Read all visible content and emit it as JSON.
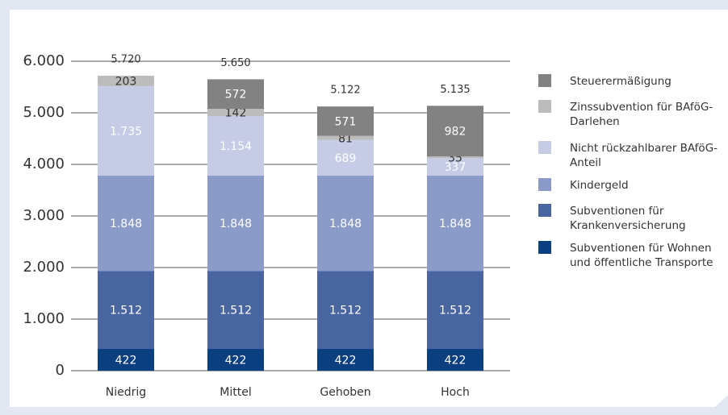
{
  "chart_data": {
    "type": "stacked-bar",
    "categories": [
      "Niedrig",
      "Mittel",
      "Gehoben",
      "Hoch"
    ],
    "series": [
      {
        "name": "Subventionen für Wohnen und öffentliche Transporte",
        "color": "#0b3f80",
        "label_color": "#ffffff",
        "values": [
          422,
          422,
          422,
          422
        ],
        "value_labels": [
          "422",
          "422",
          "422",
          "422"
        ]
      },
      {
        "name": "Subventionen für Krankenversicherung",
        "color": "#4a66a1",
        "label_color": "#ffffff",
        "values": [
          1512,
          1512,
          1512,
          1512
        ],
        "value_labels": [
          "1.512",
          "1.512",
          "1.512",
          "1.512"
        ]
      },
      {
        "name": "Kindergeld",
        "color": "#8b9bc7",
        "label_color": "#ffffff",
        "values": [
          1848,
          1848,
          1848,
          1848
        ],
        "value_labels": [
          "1.848",
          "1.848",
          "1.848",
          "1.848"
        ]
      },
      {
        "name": "Nicht rückzahlbarer BAföG-Anteil",
        "color": "#c6cbe6",
        "label_color": "#ffffff",
        "values": [
          1735,
          1154,
          689,
          337
        ],
        "value_labels": [
          "1.735",
          "1.154",
          "689",
          "337"
        ]
      },
      {
        "name": "Zinssubvention für BAföG-Darlehen",
        "color": "#bcbcbc",
        "label_color": "#333333",
        "values": [
          203,
          142,
          81,
          35
        ],
        "value_labels": [
          "203",
          "142",
          "81",
          "35"
        ]
      },
      {
        "name": "Steuerermäßigung",
        "color": "#828282",
        "label_color": "#ffffff",
        "values": [
          null,
          572,
          571,
          982
        ],
        "value_labels": [
          null,
          "572",
          "571",
          "982"
        ]
      }
    ],
    "totals": {
      "values": [
        5720,
        5650,
        5122,
        5135
      ],
      "value_labels": [
        "5.720",
        "5.650",
        "5.122",
        "5.135"
      ]
    },
    "ylim": [
      0,
      6000
    ],
    "yticks": [
      0,
      {
        "value": 1000,
        "label": "1.000"
      },
      {
        "value": 2000,
        "label": "2.000"
      },
      {
        "value": 3000,
        "label": "3.000"
      },
      {
        "value": 4000,
        "label": "4.000"
      },
      {
        "value": 5000,
        "label": "5.000"
      },
      {
        "value": 6000,
        "label": "6.000"
      }
    ],
    "grid": true
  }
}
